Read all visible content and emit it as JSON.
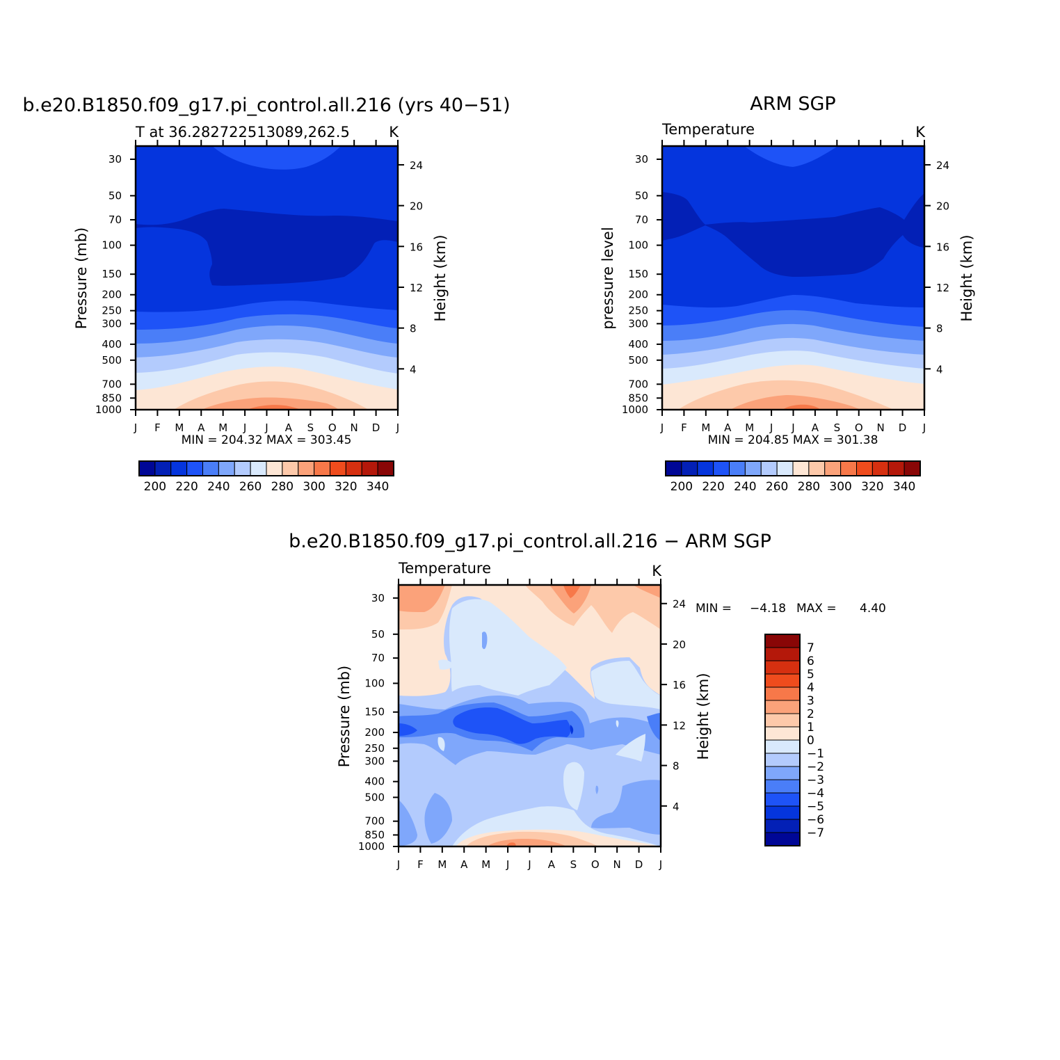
{
  "colors": {
    "abs_palette": [
      "#000796",
      "#0320b6",
      "#0535dd",
      "#1e53f7",
      "#4a7ef8",
      "#7fa7fb",
      "#b3cbfd",
      "#d9e9fc",
      "#fde6d5",
      "#fdc9aa",
      "#fba27a",
      "#f77849",
      "#ef4c1d",
      "#d63010",
      "#b4180a",
      "#890606"
    ],
    "diff_palette": [
      "#000796",
      "#0320b6",
      "#0535dd",
      "#1e53f7",
      "#4a7ef8",
      "#7fa7fb",
      "#b3cbfd",
      "#d9e9fc",
      "#fde6d5",
      "#fdc9aa",
      "#fba27a",
      "#f77849",
      "#ef4c1d",
      "#d63010",
      "#b4180a",
      "#890606"
    ]
  },
  "chart_data": [
    {
      "type": "heatmap",
      "title": "b.e20.B1850.f09_g17.pi_control.all.216 (yrs 40−51)",
      "subtitle_left": "T at 36.282722513089,262.5",
      "subtitle_right": "K",
      "ylabel": "Pressure (mb)",
      "ylabel_right": "Height (km)",
      "x_ticks": [
        "J",
        "F",
        "M",
        "A",
        "M",
        "J",
        "J",
        "A",
        "S",
        "O",
        "N",
        "D",
        "J"
      ],
      "y_ticks": [
        "30",
        "50",
        "70",
        "100",
        "150",
        "200",
        "250",
        "300",
        "400",
        "500",
        "700",
        "850",
        "1000"
      ],
      "y_ticks_right": [
        "24",
        "20",
        "16",
        "12",
        "8",
        "4"
      ],
      "stats": "MIN = 204.32 MAX = 303.45",
      "colorbar_labels": [
        "200",
        "220",
        "240",
        "260",
        "280",
        "300",
        "320",
        "340"
      ],
      "contour_levels": [
        195,
        200,
        205,
        210,
        215,
        220,
        225,
        230,
        235,
        240,
        245,
        250,
        255,
        260,
        265,
        270,
        275,
        280,
        285,
        290,
        295,
        300,
        305,
        310,
        315,
        320,
        325,
        330,
        335,
        340,
        345
      ],
      "grid": false
    },
    {
      "type": "heatmap",
      "title": "ARM SGP",
      "subtitle_left": "Temperature",
      "subtitle_right": "K",
      "ylabel": "pressure level",
      "ylabel_right": "Height (km)",
      "x_ticks": [
        "J",
        "F",
        "M",
        "A",
        "M",
        "J",
        "J",
        "A",
        "S",
        "O",
        "N",
        "D",
        "J"
      ],
      "y_ticks": [
        "30",
        "50",
        "70",
        "100",
        "150",
        "200",
        "250",
        "300",
        "400",
        "500",
        "700",
        "850",
        "1000"
      ],
      "y_ticks_right": [
        "24",
        "20",
        "16",
        "12",
        "8",
        "4"
      ],
      "stats": "MIN = 204.85 MAX = 301.38",
      "colorbar_labels": [
        "200",
        "220",
        "240",
        "260",
        "280",
        "300",
        "320",
        "340"
      ],
      "grid": false
    },
    {
      "type": "heatmap",
      "title": "b.e20.B1850.f09_g17.pi_control.all.216 − ARM SGP",
      "subtitle_left": "Temperature",
      "subtitle_right": "K",
      "ylabel": "Pressure (mb)",
      "ylabel_right": "Height (km)",
      "x_ticks": [
        "J",
        "F",
        "M",
        "A",
        "M",
        "J",
        "J",
        "A",
        "S",
        "O",
        "N",
        "D",
        "J"
      ],
      "y_ticks": [
        "30",
        "50",
        "70",
        "100",
        "150",
        "200",
        "250",
        "300",
        "400",
        "500",
        "700",
        "850",
        "1000"
      ],
      "y_ticks_right": [
        "24",
        "20",
        "16",
        "12",
        "8",
        "4"
      ],
      "stats_min_label": "MIN =",
      "stats_min": "−4.18",
      "stats_max_label": "MAX =",
      "stats_max": "4.40",
      "colorbar_labels": [
        "7",
        "6",
        "5",
        "4",
        "3",
        "2",
        "1",
        "0",
        "−1",
        "−2",
        "−3",
        "−4",
        "−5",
        "−6",
        "−7"
      ],
      "grid": false
    }
  ]
}
